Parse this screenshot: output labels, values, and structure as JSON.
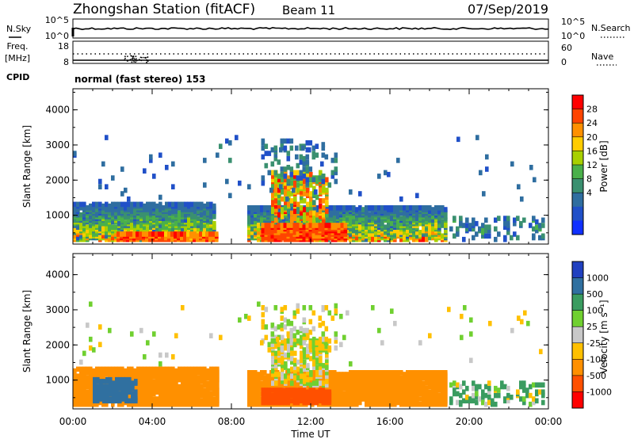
{
  "header": {
    "station": "Zhongshan Station (fitACF)",
    "beam": "Beam 11",
    "date": "07/Sep/2019"
  },
  "strip": {
    "nsky_label": "N.Sky",
    "nsearch_label": "N.Search",
    "nsky_ticks": [
      "10^5",
      "10^0"
    ],
    "nsky_right_ticks": [
      "10^5",
      "10^0"
    ],
    "freq_label": "Freq.",
    "freq_unit": "[MHz]",
    "freq_ticks": [
      "18",
      "8"
    ],
    "nave_label": "Nave",
    "nave_ticks": [
      "60",
      "0"
    ],
    "cpid_label": "CPID",
    "cpid_text": "normal (fast stereo) 153"
  },
  "axes": {
    "ylabel": "Slant Range [km]",
    "yticks": [
      "4000",
      "3000",
      "2000",
      "1000"
    ],
    "xticks": [
      "00:00",
      "04:00",
      "08:00",
      "12:00",
      "16:00",
      "20:00",
      "00:00"
    ],
    "xlabel": "Time UT"
  },
  "power_colorbar": {
    "label": "Power [dB]",
    "ticks": [
      "28",
      "24",
      "20",
      "16",
      "12",
      "8",
      "4"
    ],
    "colors": [
      "#ff0000",
      "#ff4400",
      "#ff9000",
      "#ffcc00",
      "#a8d000",
      "#4ab04a",
      "#3a9070",
      "#2f6ea0",
      "#2050c8",
      "#1030ff"
    ]
  },
  "velocity_colorbar": {
    "label": "Velocity [m s⁻¹]",
    "ticks": [
      "1000",
      "500",
      "100",
      "25",
      "-25",
      "-100",
      "-500",
      "-1000"
    ],
    "colors": [
      "#2040c0",
      "#3070a0",
      "#3a9c60",
      "#70d030",
      "#c8c8c8",
      "#ffc000",
      "#ff9000",
      "#ff5000",
      "#ff0000"
    ]
  },
  "chart_data": {
    "type": "heatmap",
    "x_range_hours": [
      0,
      24
    ],
    "y_range_km": [
      180,
      4600
    ],
    "panels": [
      {
        "name": "power",
        "clusters": [
          {
            "t0": 0.0,
            "t1": 7.2,
            "r0": 250,
            "r1": 1300,
            "density": 0.85,
            "vals": [
              4,
              26
            ],
            "bias": "high-near"
          },
          {
            "t0": 2.2,
            "t1": 7.3,
            "r0": 250,
            "r1": 420,
            "density": 0.95,
            "vals": [
              22,
              30
            ],
            "bias": "flat"
          },
          {
            "t0": 8.8,
            "t1": 18.8,
            "r0": 250,
            "r1": 1200,
            "density": 0.85,
            "vals": [
              4,
              28
            ],
            "bias": "high-near"
          },
          {
            "t0": 9.5,
            "t1": 13.8,
            "r0": 250,
            "r1": 700,
            "density": 0.9,
            "vals": [
              24,
              30
            ],
            "bias": "flat"
          },
          {
            "t0": 10.0,
            "t1": 12.8,
            "r0": 800,
            "r1": 2200,
            "density": 0.45,
            "vals": [
              12,
              30
            ],
            "bias": "flat"
          },
          {
            "t0": 9.5,
            "t1": 13.2,
            "r0": 1800,
            "r1": 3100,
            "density": 0.15,
            "vals": [
              4,
              12
            ],
            "bias": "flat"
          },
          {
            "t0": 19.0,
            "t1": 23.8,
            "r0": 250,
            "r1": 900,
            "density": 0.2,
            "vals": [
              4,
              14
            ],
            "bias": "flat"
          },
          {
            "t0": 0.0,
            "t1": 24.0,
            "r0": 1400,
            "r1": 3200,
            "density": 0.012,
            "vals": [
              4,
              10
            ],
            "bias": "flat"
          }
        ]
      },
      {
        "name": "velocity",
        "clusters": [
          {
            "t0": 0.0,
            "t1": 7.3,
            "r0": 250,
            "r1": 1300,
            "density": 0.85,
            "vals": [
              -500,
              -100
            ],
            "bias": "flat"
          },
          {
            "t0": 1.0,
            "t1": 3.2,
            "r0": 350,
            "r1": 1000,
            "density": 0.7,
            "vals": [
              500,
              1000
            ],
            "bias": "flat"
          },
          {
            "t0": 8.8,
            "t1": 18.8,
            "r0": 250,
            "r1": 1200,
            "density": 0.85,
            "vals": [
              -500,
              -100
            ],
            "bias": "flat"
          },
          {
            "t0": 9.5,
            "t1": 13.0,
            "r0": 300,
            "r1": 700,
            "density": 0.8,
            "vals": [
              -1000,
              -500
            ],
            "bias": "flat"
          },
          {
            "t0": 10.0,
            "t1": 12.8,
            "r0": 800,
            "r1": 2200,
            "density": 0.45,
            "vals": [
              -100,
              100
            ],
            "bias": "flat"
          },
          {
            "t0": 9.5,
            "t1": 13.2,
            "r0": 1800,
            "r1": 3100,
            "density": 0.15,
            "vals": [
              -100,
              100
            ],
            "bias": "flat"
          },
          {
            "t0": 19.0,
            "t1": 23.8,
            "r0": 250,
            "r1": 900,
            "density": 0.25,
            "vals": [
              -100,
              500
            ],
            "bias": "flat"
          },
          {
            "t0": 0.0,
            "t1": 24.0,
            "r0": 1400,
            "r1": 3200,
            "density": 0.012,
            "vals": [
              -100,
              100
            ],
            "bias": "flat"
          }
        ]
      }
    ]
  }
}
